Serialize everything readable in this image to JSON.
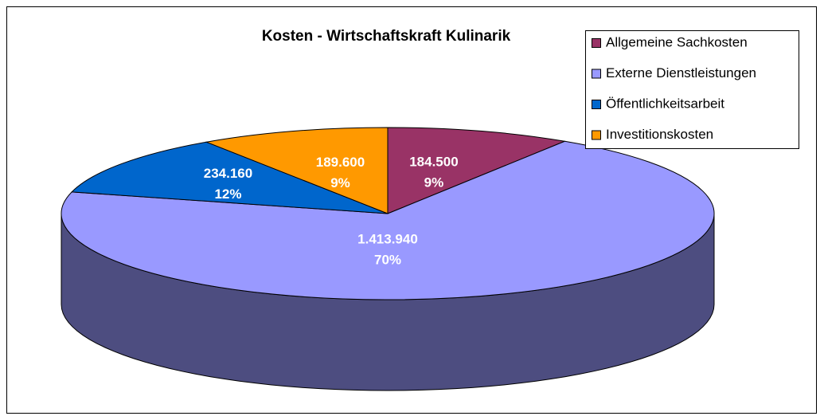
{
  "chart_data": {
    "type": "pie",
    "title": "Kosten - Wirtschaftskraft Kulinarik",
    "categories": [
      "Allgemeine Sachkosten",
      "Externe Dienstleistungen",
      "Öffentlichkeitsarbeit",
      "Investitionskosten"
    ],
    "values": [
      184500,
      1413940,
      234160,
      189600
    ],
    "value_labels": [
      "184.500",
      "1.413.940",
      "234.160",
      "189.600"
    ],
    "percents": [
      9,
      70,
      12,
      9
    ],
    "percent_labels": [
      "9%",
      "70%",
      "12%",
      "9%"
    ],
    "colors": [
      "#993366",
      "#9999ff",
      "#0066cc",
      "#ff9900"
    ],
    "legend": "top-right"
  }
}
